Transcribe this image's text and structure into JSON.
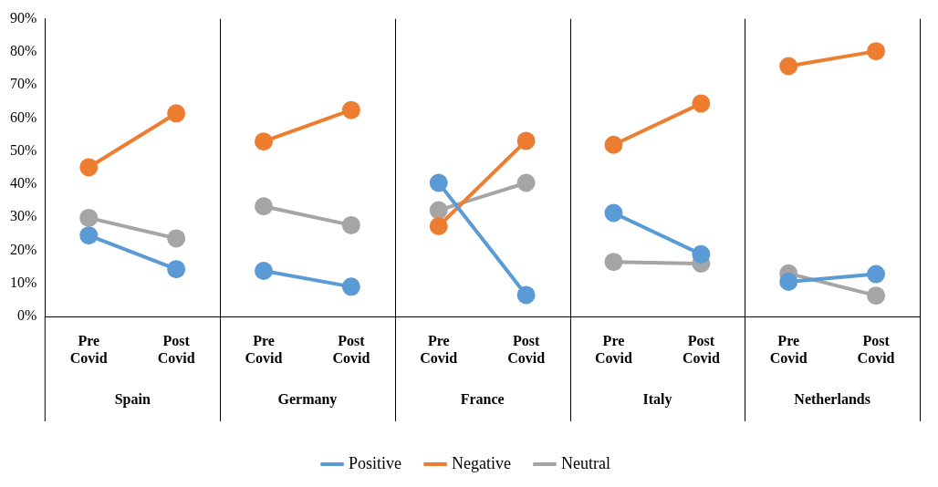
{
  "chart_data": {
    "type": "line",
    "categories": [
      "Pre Covid",
      "Post Covid",
      "Pre Covid",
      "Post Covid",
      "Pre Covid",
      "Post Covid",
      "Pre Covid",
      "Post Covid",
      "Pre Covid",
      "Post Covid"
    ],
    "annotations": [
      "Spain",
      "Germany",
      "France",
      "Italy",
      "Netherlands"
    ],
    "series": [
      {
        "name": "Positive",
        "color": "#5b9bd5",
        "values": [
          24.5,
          14.3,
          13.8,
          9.0,
          40.4,
          6.5,
          31.3,
          18.8,
          10.5,
          12.8
        ]
      },
      {
        "name": "Negative",
        "color": "#ed7d31",
        "values": [
          45.1,
          61.4,
          52.9,
          62.4,
          27.3,
          53.1,
          51.9,
          64.4,
          75.7,
          80.2
        ]
      },
      {
        "name": "Neutral",
        "color": "#a5a5a5",
        "values": [
          29.8,
          23.6,
          33.3,
          27.6,
          32.1,
          40.4,
          16.5,
          16.0,
          13.0,
          6.3
        ]
      }
    ],
    "ylim": [
      0,
      90
    ],
    "yticks": [
      {
        "value": 0,
        "label": "0%"
      },
      {
        "value": 10,
        "label": "10%"
      },
      {
        "value": 20,
        "label": "20%"
      },
      {
        "value": 30,
        "label": "30%"
      },
      {
        "value": 40,
        "label": "40%"
      },
      {
        "value": 50,
        "label": "50%"
      },
      {
        "value": 60,
        "label": "60%"
      },
      {
        "value": 70,
        "label": "70%"
      },
      {
        "value": 80,
        "label": "80%"
      },
      {
        "value": 90,
        "label": "90%"
      }
    ],
    "grid": false,
    "legend": "bottom",
    "marker": "circle",
    "line_style": "solid"
  }
}
